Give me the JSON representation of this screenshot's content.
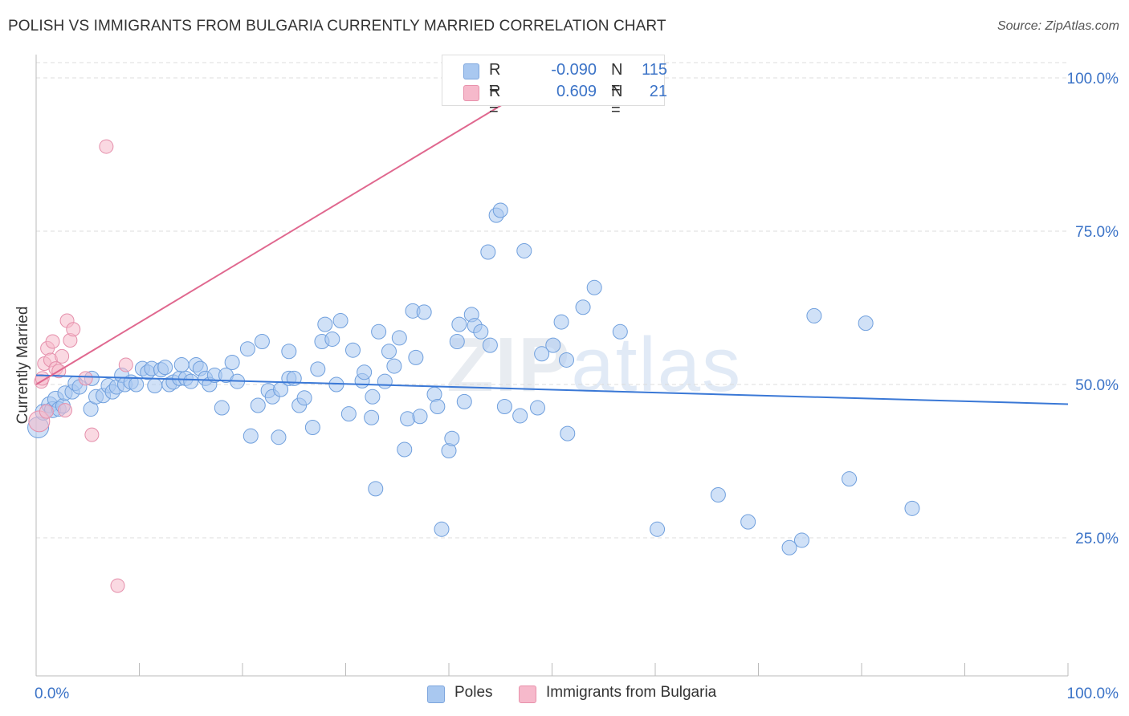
{
  "header": {
    "title": "POLISH VS IMMIGRANTS FROM BULGARIA CURRENTLY MARRIED CORRELATION CHART",
    "source": "Source: ZipAtlas.com"
  },
  "watermark": {
    "zip": "ZIP",
    "atlas": "atlas"
  },
  "legend_top": {
    "rows": [
      {
        "r_label": "R =",
        "r_value": "-0.090",
        "n_label": "N =",
        "n_value": "115",
        "color": "#a9c8f0"
      },
      {
        "r_label": "R =",
        "r_value": "0.609",
        "n_label": "N =",
        "n_value": "21",
        "color": "#f6b9cb"
      }
    ]
  },
  "legend_bottom": {
    "items": [
      {
        "label": "Poles",
        "color": "#a9c8f0"
      },
      {
        "label": "Immigrants from Bulgaria",
        "color": "#f6b9cb"
      }
    ]
  },
  "chart_data": {
    "type": "scatter",
    "title": "POLISH VS IMMIGRANTS FROM BULGARIA CURRENTLY MARRIED CORRELATION CHART",
    "xlabel": "",
    "ylabel": "Currently Married",
    "xlim": [
      0,
      100
    ],
    "ylim": [
      0,
      103
    ],
    "x_tick_labels": [
      "0.0%",
      "100.0%"
    ],
    "y_tick_labels": [
      "25.0%",
      "50.0%",
      "75.0%",
      "100.0%"
    ],
    "y_ticks": [
      25,
      50,
      75,
      100
    ],
    "grid": true,
    "series": [
      {
        "name": "Poles",
        "color": "#3a78d6",
        "fill": "#a9c8f0",
        "trend": {
          "x": [
            0,
            100
          ],
          "y": [
            51.5,
            46.8
          ]
        },
        "points": [
          [
            0.2,
            43.0
          ],
          [
            0.7,
            45.5
          ],
          [
            1.3,
            46.7
          ],
          [
            1.6,
            45.9
          ],
          [
            1.9,
            47.6
          ],
          [
            2.2,
            46.0
          ],
          [
            2.6,
            46.5
          ],
          [
            2.8,
            48.6
          ],
          [
            3.5,
            48.8
          ],
          [
            3.8,
            50.2
          ],
          [
            4.2,
            49.6
          ],
          [
            5.3,
            46.0
          ],
          [
            5.4,
            51.0
          ],
          [
            5.8,
            48.0
          ],
          [
            6.5,
            48.2
          ],
          [
            7.0,
            49.8
          ],
          [
            7.4,
            48.8
          ],
          [
            7.8,
            49.6
          ],
          [
            8.3,
            51.5
          ],
          [
            8.6,
            50.0
          ],
          [
            9.2,
            50.4
          ],
          [
            9.7,
            50.0
          ],
          [
            10.3,
            52.6
          ],
          [
            10.8,
            52.0
          ],
          [
            11.2,
            52.6
          ],
          [
            11.5,
            49.8
          ],
          [
            12.1,
            52.4
          ],
          [
            12.5,
            52.8
          ],
          [
            12.9,
            50.0
          ],
          [
            13.3,
            50.4
          ],
          [
            13.9,
            51.0
          ],
          [
            14.1,
            53.2
          ],
          [
            14.5,
            51.0
          ],
          [
            15.0,
            50.5
          ],
          [
            15.5,
            53.2
          ],
          [
            15.9,
            52.6
          ],
          [
            16.4,
            51.0
          ],
          [
            16.8,
            50.0
          ],
          [
            17.3,
            51.5
          ],
          [
            18.0,
            46.2
          ],
          [
            18.4,
            51.5
          ],
          [
            19.0,
            53.6
          ],
          [
            19.5,
            50.5
          ],
          [
            20.5,
            55.8
          ],
          [
            20.8,
            41.6
          ],
          [
            21.5,
            46.6
          ],
          [
            21.9,
            57.0
          ],
          [
            22.5,
            49.0
          ],
          [
            22.9,
            48.0
          ],
          [
            23.5,
            41.4
          ],
          [
            23.7,
            49.2
          ],
          [
            24.5,
            55.4
          ],
          [
            24.5,
            51.0
          ],
          [
            25.0,
            51.0
          ],
          [
            25.5,
            46.6
          ],
          [
            26.0,
            47.8
          ],
          [
            26.8,
            43.0
          ],
          [
            27.3,
            52.5
          ],
          [
            27.7,
            57.0
          ],
          [
            28.0,
            59.8
          ],
          [
            28.7,
            57.4
          ],
          [
            29.1,
            50.0
          ],
          [
            29.5,
            60.4
          ],
          [
            30.3,
            45.2
          ],
          [
            30.7,
            55.6
          ],
          [
            31.6,
            50.6
          ],
          [
            31.8,
            52.0
          ],
          [
            32.5,
            44.6
          ],
          [
            32.6,
            48.0
          ],
          [
            33.2,
            58.6
          ],
          [
            33.8,
            50.5
          ],
          [
            34.2,
            55.4
          ],
          [
            34.7,
            53.0
          ],
          [
            35.2,
            57.6
          ],
          [
            35.7,
            39.4
          ],
          [
            36.0,
            44.4
          ],
          [
            36.5,
            62.0
          ],
          [
            36.8,
            54.4
          ],
          [
            37.2,
            44.8
          ],
          [
            37.6,
            61.8
          ],
          [
            38.6,
            48.4
          ],
          [
            38.9,
            46.4
          ],
          [
            39.3,
            26.4
          ],
          [
            40.0,
            39.2
          ],
          [
            40.3,
            41.2
          ],
          [
            40.8,
            57.0
          ],
          [
            41.0,
            59.8
          ],
          [
            41.5,
            47.2
          ],
          [
            42.2,
            61.4
          ],
          [
            42.5,
            59.6
          ],
          [
            43.1,
            58.6
          ],
          [
            43.8,
            71.6
          ],
          [
            44.0,
            56.4
          ],
          [
            44.6,
            77.6
          ],
          [
            45.0,
            78.4
          ],
          [
            45.4,
            46.4
          ],
          [
            47.3,
            71.8
          ],
          [
            46.9,
            44.9
          ],
          [
            48.6,
            46.2
          ],
          [
            49.0,
            55.0
          ],
          [
            50.1,
            56.4
          ],
          [
            50.9,
            60.2
          ],
          [
            51.4,
            54.0
          ],
          [
            51.5,
            42.0
          ],
          [
            53.0,
            62.6
          ],
          [
            54.1,
            65.8
          ],
          [
            56.6,
            58.6
          ],
          [
            60.2,
            26.4
          ],
          [
            66.1,
            32.0
          ],
          [
            69.0,
            27.6
          ],
          [
            73.0,
            23.4
          ],
          [
            74.2,
            24.6
          ],
          [
            75.4,
            61.2
          ],
          [
            78.8,
            34.6
          ],
          [
            80.4,
            60.0
          ],
          [
            84.9,
            29.8
          ],
          [
            32.9,
            33.0
          ]
        ]
      },
      {
        "name": "Immigrants from Bulgaria",
        "color": "#e0688f",
        "fill": "#f6b9cb",
        "trend": {
          "x": [
            0,
            50
          ],
          "y": [
            50.0,
            100.5
          ]
        },
        "points": [
          [
            0.3,
            44.0
          ],
          [
            0.5,
            50.5
          ],
          [
            0.8,
            53.4
          ],
          [
            1.1,
            55.9
          ],
          [
            1.4,
            54.0
          ],
          [
            1.6,
            57.0
          ],
          [
            1.9,
            52.6
          ],
          [
            2.2,
            52.2
          ],
          [
            2.5,
            54.6
          ],
          [
            2.8,
            45.8
          ],
          [
            3.0,
            60.4
          ],
          [
            3.3,
            57.2
          ],
          [
            3.6,
            59.0
          ],
          [
            4.8,
            51.0
          ],
          [
            5.4,
            41.8
          ],
          [
            6.8,
            88.8
          ],
          [
            7.9,
            17.2
          ],
          [
            8.7,
            53.2
          ],
          [
            47.3,
            100.0
          ],
          [
            0.6,
            51.0
          ],
          [
            1.0,
            45.6
          ]
        ]
      }
    ]
  }
}
